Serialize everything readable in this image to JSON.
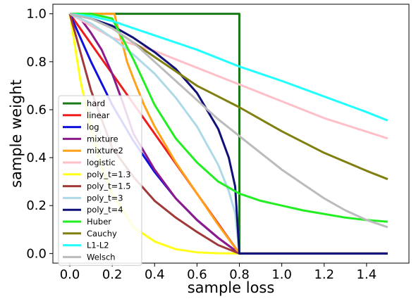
{
  "chart_data": {
    "type": "line",
    "xlabel": "sample loss",
    "ylabel": "sample weight",
    "xlim": [
      -0.08,
      1.6
    ],
    "ylim": [
      -0.04,
      1.04
    ],
    "xticks": [
      0.0,
      0.2,
      0.4,
      0.6,
      0.8,
      1.0,
      1.2,
      1.4
    ],
    "xtick_labels": [
      "0.0",
      "0.2",
      "0.4",
      "0.6",
      "0.8",
      "1.0",
      "1.2",
      "1.4"
    ],
    "yticks": [
      0.0,
      0.2,
      0.4,
      0.6,
      0.8,
      1.0
    ],
    "ytick_labels": [
      "0.0",
      "0.2",
      "0.4",
      "0.6",
      "0.8",
      "1.0"
    ],
    "grid": false,
    "legend_position": "lower-left",
    "series": [
      {
        "name": "hard",
        "color": "#1a7a1a",
        "x": [
          0,
          0.8,
          0.8,
          1.5
        ],
        "y": [
          1,
          1,
          0,
          0
        ]
      },
      {
        "name": "linear",
        "color": "#ee1c1c",
        "x": [
          0,
          0.2,
          0.4,
          0.6,
          0.8,
          1.5
        ],
        "y": [
          1,
          0.75,
          0.5,
          0.25,
          0,
          0
        ]
      },
      {
        "name": "log",
        "color": "#1010dd",
        "x": [
          0,
          0.1,
          0.2,
          0.3,
          0.4,
          0.5,
          0.6,
          0.7,
          0.8,
          1.5
        ],
        "y": [
          1,
          0.8,
          0.62,
          0.47,
          0.34,
          0.23,
          0.14,
          0.065,
          0,
          0
        ]
      },
      {
        "name": "mixture",
        "color": "#8b1a8b",
        "x": [
          0,
          0.05,
          0.1,
          0.15,
          0.2,
          0.25,
          0.3,
          0.4,
          0.5,
          0.6,
          0.7,
          0.8,
          1.5
        ],
        "y": [
          1,
          0.98,
          0.92,
          0.85,
          0.75,
          0.63,
          0.5,
          0.35,
          0.23,
          0.14,
          0.065,
          0,
          0
        ]
      },
      {
        "name": "mixture2",
        "color": "#ffa21a",
        "x": [
          0,
          0.21,
          0.23,
          0.25,
          0.27,
          0.3,
          0.35,
          0.4,
          0.5,
          0.6,
          0.7,
          0.8,
          1.5
        ],
        "y": [
          1,
          1,
          0.93,
          0.87,
          0.8,
          0.73,
          0.62,
          0.53,
          0.38,
          0.25,
          0.12,
          0,
          0
        ]
      },
      {
        "name": "logistic",
        "color": "#ffbfc9",
        "x": [
          0,
          0.1,
          0.2,
          0.4,
          0.6,
          0.8,
          1.0,
          1.2,
          1.5
        ],
        "y": [
          1,
          0.95,
          0.9,
          0.845,
          0.775,
          0.705,
          0.635,
          0.565,
          0.48
        ]
      },
      {
        "name": "poly_t=1.3",
        "color": "#ffff1a",
        "x": [
          0,
          0.05,
          0.1,
          0.15,
          0.2,
          0.3,
          0.4,
          0.5,
          0.6,
          0.7,
          0.8,
          1.5
        ],
        "y": [
          1,
          0.72,
          0.52,
          0.36,
          0.25,
          0.11,
          0.05,
          0.018,
          0.005,
          0.001,
          0,
          0
        ]
      },
      {
        "name": "poly_t=1.5",
        "color": "#a03a3a",
        "x": [
          0,
          0.1,
          0.2,
          0.3,
          0.4,
          0.5,
          0.6,
          0.7,
          0.8,
          1.5
        ],
        "y": [
          1,
          0.68,
          0.44,
          0.32,
          0.22,
          0.15,
          0.09,
          0.035,
          0,
          0
        ]
      },
      {
        "name": "poly_t=3",
        "color": "#addae6",
        "x": [
          0,
          0.1,
          0.2,
          0.3,
          0.4,
          0.5,
          0.6,
          0.7,
          0.75,
          0.78,
          0.8,
          1.5
        ],
        "y": [
          1,
          0.96,
          0.9,
          0.83,
          0.75,
          0.65,
          0.53,
          0.37,
          0.26,
          0.17,
          0,
          0
        ]
      },
      {
        "name": "poly_t=4",
        "color": "#10107a",
        "x": [
          0,
          0.1,
          0.2,
          0.3,
          0.4,
          0.5,
          0.6,
          0.7,
          0.75,
          0.78,
          0.8,
          1.5
        ],
        "y": [
          1,
          0.98,
          0.95,
          0.9,
          0.84,
          0.77,
          0.67,
          0.52,
          0.4,
          0.28,
          0,
          0
        ]
      },
      {
        "name": "Huber",
        "color": "#22ee22",
        "x": [
          0,
          0.1,
          0.2,
          0.3,
          0.4,
          0.5,
          0.6,
          0.7,
          0.8,
          0.9,
          1.0,
          1.1,
          1.2,
          1.3,
          1.4,
          1.5
        ],
        "y": [
          1,
          1,
          0.98,
          0.81,
          0.62,
          0.48,
          0.38,
          0.3,
          0.25,
          0.22,
          0.2,
          0.18,
          0.165,
          0.15,
          0.14,
          0.133
        ]
      },
      {
        "name": "Cauchy",
        "color": "#808010",
        "x": [
          0,
          0.1,
          0.2,
          0.3,
          0.4,
          0.5,
          0.6,
          0.7,
          0.8,
          1.0,
          1.2,
          1.4,
          1.5
        ],
        "y": [
          1,
          0.98,
          0.94,
          0.88,
          0.82,
          0.76,
          0.7,
          0.655,
          0.61,
          0.51,
          0.42,
          0.345,
          0.31
        ]
      },
      {
        "name": "L1-L2",
        "color": "#22ffff",
        "x": [
          0,
          0.1,
          0.2,
          0.4,
          0.6,
          0.8,
          1.0,
          1.2,
          1.4,
          1.5
        ],
        "y": [
          1,
          0.99,
          0.97,
          0.91,
          0.85,
          0.78,
          0.72,
          0.655,
          0.59,
          0.555
        ]
      },
      {
        "name": "Welsch",
        "color": "#bbbbbb",
        "x": [
          0,
          0.1,
          0.2,
          0.3,
          0.4,
          0.5,
          0.6,
          0.7,
          0.8,
          0.9,
          1.0,
          1.1,
          1.2,
          1.3,
          1.4,
          1.5
        ],
        "y": [
          1,
          0.98,
          0.94,
          0.88,
          0.8,
          0.72,
          0.64,
          0.56,
          0.49,
          0.42,
          0.35,
          0.29,
          0.23,
          0.18,
          0.14,
          0.11
        ]
      }
    ]
  }
}
